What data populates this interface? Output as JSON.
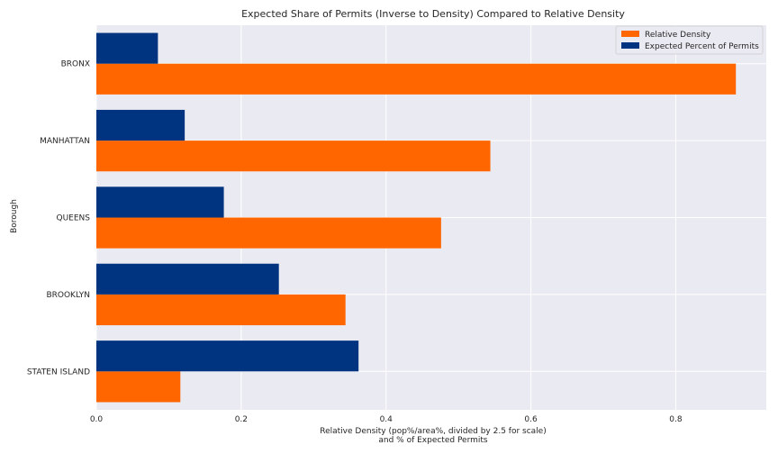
{
  "chart_data": {
    "type": "bar",
    "orientation": "horizontal",
    "title": "Expected Share of Permits (Inverse to Density) Compared to Relative Density",
    "xlabel_line1": "Relative Density (pop%/area%, divided by 2.5 for scale)",
    "xlabel_line2": "and % of Expected Permits",
    "ylabel": "Borough",
    "categories": [
      "BRONX",
      "MANHATTAN",
      "QUEENS",
      "BROOKLYN",
      "STATEN ISLAND"
    ],
    "series": [
      {
        "name": "Relative Density",
        "color": "#ff6600",
        "values": [
          0.883,
          0.544,
          0.476,
          0.344,
          0.116
        ]
      },
      {
        "name": "Expected Percent of Permits",
        "color": "#003380",
        "values": [
          0.085,
          0.122,
          0.176,
          0.252,
          0.362
        ]
      }
    ],
    "xlim": [
      0,
      0.925
    ],
    "xticks": [
      0.0,
      0.2,
      0.4,
      0.6,
      0.8
    ],
    "xtick_labels": [
      "0.0",
      "0.2",
      "0.4",
      "0.6",
      "0.8"
    ],
    "grid": true,
    "legend_position": "top-right",
    "plot_background": "#eaeaf2"
  }
}
